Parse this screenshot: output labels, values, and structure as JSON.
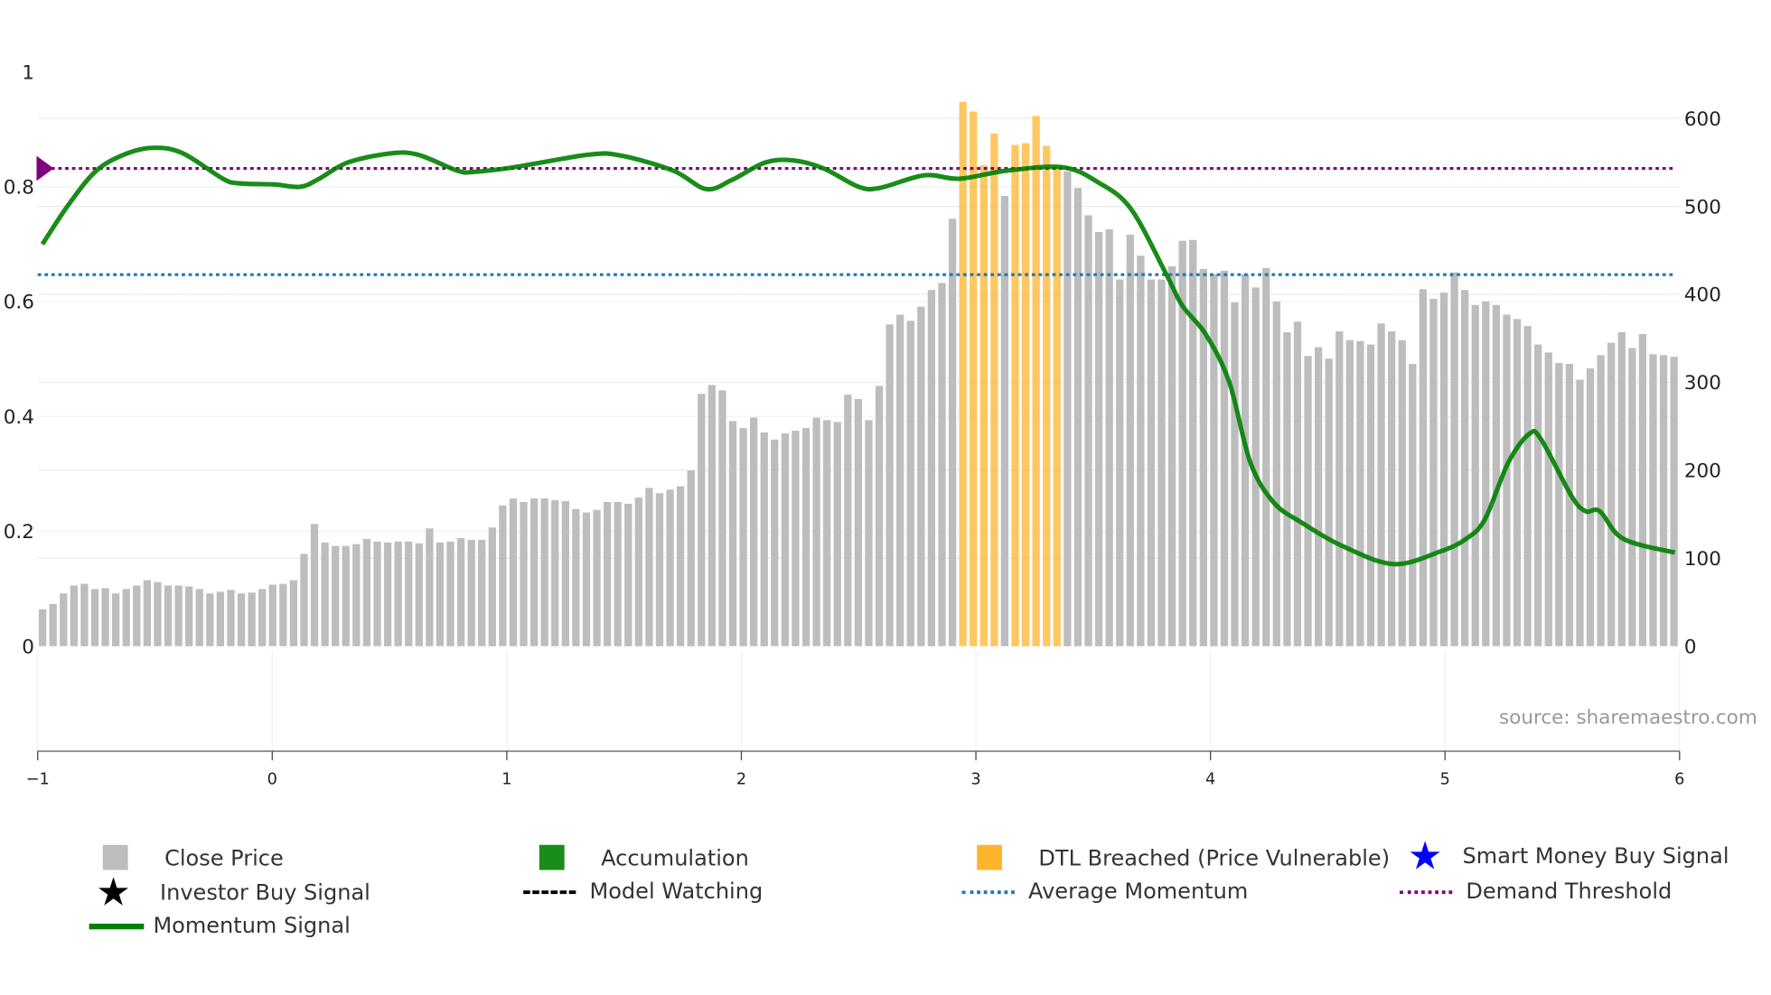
{
  "chart_data": {
    "type": "bar",
    "title": "",
    "x_range": [
      -1,
      6
    ],
    "x_ticks": [
      "−1",
      "0",
      "1",
      "2",
      "3",
      "4",
      "5",
      "6"
    ],
    "y_left_range": [
      0,
      1
    ],
    "y_left_ticks": [
      "0",
      "0.2",
      "0.4",
      "0.6",
      "0.8",
      "1"
    ],
    "y_right_range": [
      0,
      653
    ],
    "y_right_ticks": [
      "0",
      "100",
      "200",
      "300",
      "400",
      "500",
      "600"
    ],
    "grid": true,
    "close_price": [
      42,
      48,
      60,
      69,
      71,
      65,
      66,
      60,
      65,
      69,
      75,
      73,
      69,
      69,
      68,
      65,
      60,
      62,
      64,
      60,
      61,
      65,
      70,
      71,
      75,
      105,
      139,
      118,
      114,
      114,
      116,
      122,
      119,
      118,
      119,
      119,
      117,
      134,
      118,
      119,
      123,
      121,
      121,
      135,
      160,
      168,
      164,
      168,
      168,
      166,
      165,
      156,
      152,
      155,
      164,
      164,
      162,
      169,
      180,
      174,
      178,
      182,
      200,
      287,
      297,
      291,
      256,
      248,
      260,
      243,
      235,
      242,
      245,
      248,
      260,
      257,
      255,
      286,
      281,
      257,
      296,
      366,
      377,
      370,
      386,
      405,
      413,
      486,
      619,
      608,
      547,
      583,
      512,
      570,
      572,
      603,
      569,
      547,
      540,
      521,
      490,
      471,
      474,
      417,
      468,
      444,
      417,
      417,
      432,
      461,
      462,
      429,
      423,
      427,
      391,
      423,
      408,
      430,
      392,
      357,
      369,
      330,
      340,
      327,
      358,
      348,
      347,
      343,
      367,
      358,
      348,
      321,
      406,
      395,
      402,
      425,
      405,
      388,
      392,
      388,
      377,
      372,
      364,
      343,
      334,
      322,
      321,
      303,
      316,
      331,
      345,
      357,
      339,
      355,
      332,
      331,
      329
    ],
    "dtl_breached_indices": [
      88,
      89,
      90,
      91,
      93,
      94,
      95,
      96,
      97
    ],
    "momentum_signal": [
      [
        -0.98,
        0.7
      ],
      [
        -0.87,
        0.768
      ],
      [
        -0.75,
        0.828
      ],
      [
        -0.62,
        0.858
      ],
      [
        -0.5,
        0.868
      ],
      [
        -0.38,
        0.858
      ],
      [
        -0.21,
        0.814
      ],
      [
        -0.14,
        0.806
      ],
      [
        0.01,
        0.804
      ],
      [
        0.12,
        0.8
      ],
      [
        0.2,
        0.814
      ],
      [
        0.32,
        0.842
      ],
      [
        0.5,
        0.858
      ],
      [
        0.62,
        0.856
      ],
      [
        0.79,
        0.828
      ],
      [
        0.86,
        0.826
      ],
      [
        1.03,
        0.834
      ],
      [
        1.35,
        0.856
      ],
      [
        1.49,
        0.854
      ],
      [
        1.71,
        0.828
      ],
      [
        1.85,
        0.796
      ],
      [
        1.96,
        0.812
      ],
      [
        2.1,
        0.842
      ],
      [
        2.22,
        0.846
      ],
      [
        2.35,
        0.832
      ],
      [
        2.5,
        0.8
      ],
      [
        2.59,
        0.798
      ],
      [
        2.78,
        0.82
      ],
      [
        2.93,
        0.814
      ],
      [
        3.13,
        0.828
      ],
      [
        3.37,
        0.834
      ],
      [
        3.52,
        0.808
      ],
      [
        3.66,
        0.762
      ],
      [
        3.81,
        0.649
      ],
      [
        3.88,
        0.593
      ],
      [
        3.98,
        0.543
      ],
      [
        4.08,
        0.46
      ],
      [
        4.17,
        0.32
      ],
      [
        4.27,
        0.25
      ],
      [
        4.39,
        0.215
      ],
      [
        4.56,
        0.175
      ],
      [
        4.78,
        0.143
      ],
      [
        4.98,
        0.165
      ],
      [
        5.09,
        0.187
      ],
      [
        5.17,
        0.221
      ],
      [
        5.27,
        0.32
      ],
      [
        5.36,
        0.37
      ],
      [
        5.41,
        0.36
      ],
      [
        5.54,
        0.261
      ],
      [
        5.6,
        0.235
      ],
      [
        5.66,
        0.235
      ],
      [
        5.76,
        0.187
      ],
      [
        5.98,
        0.163
      ]
    ],
    "demand_threshold": 0.832,
    "average_momentum": 0.647,
    "smart_money_marker": [
      -1,
      0.832
    ],
    "annotation": "source: sharemaestro.com",
    "legend_placement": "bottom",
    "colors": {
      "close": "#bdbdbd",
      "accumulation": "#1a8c1a",
      "dtl": "#ffb42e",
      "smart": "#0000ff",
      "momentum": "#008000",
      "avg": "#1f77b4",
      "demand": "#800080"
    }
  },
  "legend": [
    "Close Price",
    "Accumulation",
    "DTL Breached (Price Vulnerable)",
    "Smart Money Buy Signal",
    "Investor Buy Signal",
    "Model Watching",
    "Average Momentum",
    "Demand Threshold",
    "Momentum Signal"
  ]
}
